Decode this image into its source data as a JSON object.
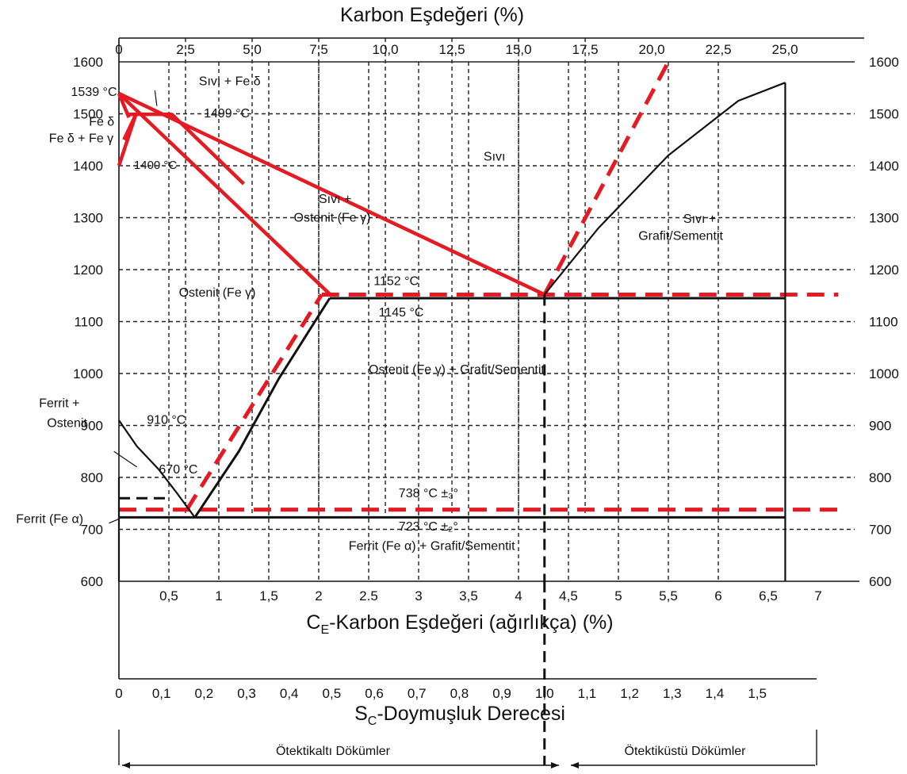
{
  "chart_data": {
    "type": "line",
    "title": "Karbon Eşdeğeri (%)",
    "xlabel_prefix": "C",
    "xlabel_sub": "E",
    "xlabel_rest": "-Karbon Eşdeğeri (ağırlıkça) (%)",
    "sc_label_prefix": "S",
    "sc_label_sub": "C",
    "sc_label_rest": "-Doymuşluk Derecesi",
    "xlim": [
      0,
      7
    ],
    "ylim": [
      600,
      1600
    ],
    "y_ticks": [
      "1600",
      "1500",
      "1400",
      "1300",
      "1200",
      "1100",
      "1000",
      "900",
      "800",
      "700",
      "600"
    ],
    "y_tick_values": [
      1600,
      1500,
      1400,
      1300,
      1200,
      1100,
      1000,
      900,
      800,
      700,
      600
    ],
    "y_ticks_right": [
      "1600",
      "1500",
      "1400",
      "1300",
      "1200",
      "1100",
      "1000",
      "900",
      "800",
      "700",
      "600"
    ],
    "ce_ticks": [
      "0,5",
      "1",
      "1,5",
      "2",
      "2.5",
      "3",
      "3,5",
      "4",
      "4,5",
      "5",
      "5,5",
      "6",
      "6,5",
      "7"
    ],
    "ce_tick_values": [
      0.5,
      1,
      1.5,
      2,
      2.5,
      3,
      3.5,
      4,
      4.5,
      5,
      5.5,
      6,
      6.5,
      7
    ],
    "top_ticks": [
      "0",
      "2,5",
      "5,0",
      "7,5",
      "10,0",
      "12,5",
      "15,0",
      "17,5",
      "20,0",
      "22,5",
      "25,0"
    ],
    "top_tick_values": [
      0,
      2.5,
      5,
      7.5,
      10,
      12.5,
      15,
      17.5,
      20,
      22.5,
      25
    ],
    "top_scale_ce_per_unit": 0.2667,
    "sc_ticks": [
      "0",
      "0,1",
      "0,2",
      "0,3",
      "0,4",
      "0,5",
      "0,6",
      "0,7",
      "0,8",
      "0,9",
      "1,0",
      "1,1",
      "1,2",
      "1,3",
      "1,4",
      "1,5"
    ],
    "sc_tick_values": [
      0,
      0.1,
      0.2,
      0.3,
      0.4,
      0.5,
      0.6,
      0.7,
      0.8,
      0.9,
      1.0,
      1.1,
      1.2,
      1.3,
      1.4,
      1.5
    ],
    "sc_ce_per_unit": 4.26,
    "vertical_dashed_ce": [
      0.5,
      1,
      1.5,
      2,
      2.5,
      3,
      3.5,
      4,
      4.5,
      5,
      5.5,
      6
    ],
    "vertical_dashed_top": [
      2.5,
      5,
      7.5,
      10,
      12.5,
      15,
      17.5
    ],
    "series": [
      {
        "style": "red-solid",
        "x": [
          0,
          2.11
        ],
        "y": [
          1539,
          1153
        ]
      },
      {
        "style": "red-solid",
        "x": [
          0,
          4.26
        ],
        "y": [
          1539,
          1152
        ]
      },
      {
        "style": "red-solid",
        "x": [
          0,
          0.1
        ],
        "y": [
          1539,
          1493
        ]
      },
      {
        "style": "red-solid",
        "x": [
          0,
          0.17
        ],
        "y": [
          1400,
          1499
        ]
      },
      {
        "style": "red-solid",
        "x": [
          0.1,
          0.53
        ],
        "y": [
          1499,
          1499
        ]
      },
      {
        "style": "red-solid",
        "x": [
          0.53,
          1.25
        ],
        "y": [
          1499,
          1365
        ]
      },
      {
        "style": "red-solid",
        "x": [
          0.17,
          0.05
        ],
        "y": [
          1499,
          1450
        ]
      },
      {
        "style": "red-dashed",
        "x": [
          4.26,
          5.5
        ],
        "y": [
          1152,
          1600
        ]
      },
      {
        "style": "red-dashed",
        "x": [
          2.03,
          7.2
        ],
        "y": [
          1152,
          1152
        ]
      },
      {
        "style": "red-dashed",
        "x": [
          0.68,
          2.03
        ],
        "y": [
          738,
          1152
        ]
      },
      {
        "style": "red-dashed",
        "x": [
          0,
          7.2
        ],
        "y": [
          738,
          738
        ]
      },
      {
        "style": "black-solid",
        "x": [
          2.11,
          6.67
        ],
        "y": [
          1145,
          1145
        ]
      },
      {
        "style": "black-solid",
        "x": [
          0,
          6.67
        ],
        "y": [
          723,
          723
        ]
      },
      {
        "style": "black-solid",
        "x": [
          0,
          0.18,
          0.4,
          0.58,
          0.76
        ],
        "y": [
          910,
          860,
          815,
          770,
          723
        ]
      },
      {
        "style": "black-solid",
        "x": [
          0.76,
          1.2,
          1.6,
          2.11
        ],
        "y": [
          723,
          850,
          990,
          1145
        ]
      },
      {
        "style": "black-solid",
        "x": [
          4.26,
          4.8,
          5.5,
          6.2,
          6.67
        ],
        "y": [
          1152,
          1280,
          1420,
          1525,
          1560
        ]
      },
      {
        "style": "black-solid",
        "x": [
          6.67,
          6.67
        ],
        "y": [
          1560,
          600
        ]
      },
      {
        "style": "black-solid",
        "x": [
          0,
          0
        ],
        "y": [
          800,
          600
        ]
      },
      {
        "style": "black-dashed",
        "x": [
          0,
          0.5
        ],
        "y": [
          760,
          760
        ]
      },
      {
        "style": "black-dashed",
        "x": [
          4.26,
          4.26
        ],
        "y": [
          1152,
          600
        ]
      }
    ],
    "annotations": [
      {
        "text": "1539 °C",
        "x": -0.48,
        "y": 1534
      },
      {
        "text": "Fe δ",
        "x": -0.3,
        "y": 1477
      },
      {
        "text": "Fe δ + Fe γ",
        "x": -0.7,
        "y": 1445
      },
      {
        "text": "Sıvı + Fe δ",
        "x": 0.8,
        "y": 1555
      },
      {
        "text": "1499 °C",
        "x": 0.85,
        "y": 1493
      },
      {
        "text": "1400 °C",
        "x": 0.15,
        "y": 1394
      },
      {
        "text": "Sıvı",
        "x": 3.65,
        "y": 1410
      },
      {
        "text": "Sıvı +",
        "x": 2.0,
        "y": 1328
      },
      {
        "text": "Ostenit (Fe γ)",
        "x": 1.75,
        "y": 1292
      },
      {
        "text": "Sıvı +",
        "x": 5.65,
        "y": 1290
      },
      {
        "text": "Grafit/Sementit",
        "x": 5.2,
        "y": 1257
      },
      {
        "text": "1152 °C",
        "x": 2.55,
        "y": 1170
      },
      {
        "text": "Ostenit (Fe γ)",
        "x": 0.6,
        "y": 1148
      },
      {
        "text": "1145 °C",
        "x": 2.6,
        "y": 1110
      },
      {
        "text": "Ostenit (Fe γ) + Grafit/Sementit",
        "x": 2.5,
        "y": 1000
      },
      {
        "text": "Ferrit +",
        "x": -0.8,
        "y": 935
      },
      {
        "text": "Ostenit",
        "x": -0.72,
        "y": 897
      },
      {
        "text": "910 °C",
        "x": 0.28,
        "y": 903
      },
      {
        "text": "670 °C",
        "x": 0.4,
        "y": 808
      },
      {
        "text": "738 °C ±₃°",
        "x": 2.8,
        "y": 762
      },
      {
        "text": "723 °C ±₂°",
        "x": 2.8,
        "y": 698
      },
      {
        "text": "Ferrit (Fe α)",
        "x": -1.03,
        "y": 712
      },
      {
        "text": "Ferrit (Fe α) + Grafit/Sementit",
        "x": 2.3,
        "y": 660
      }
    ],
    "regions_bottom": [
      "Ötektikaltı Dökümler",
      "Ötektiküstü Dökümler"
    ],
    "colors": {
      "red": "#e41b23",
      "black": "#111111",
      "grid": "#222222"
    }
  }
}
